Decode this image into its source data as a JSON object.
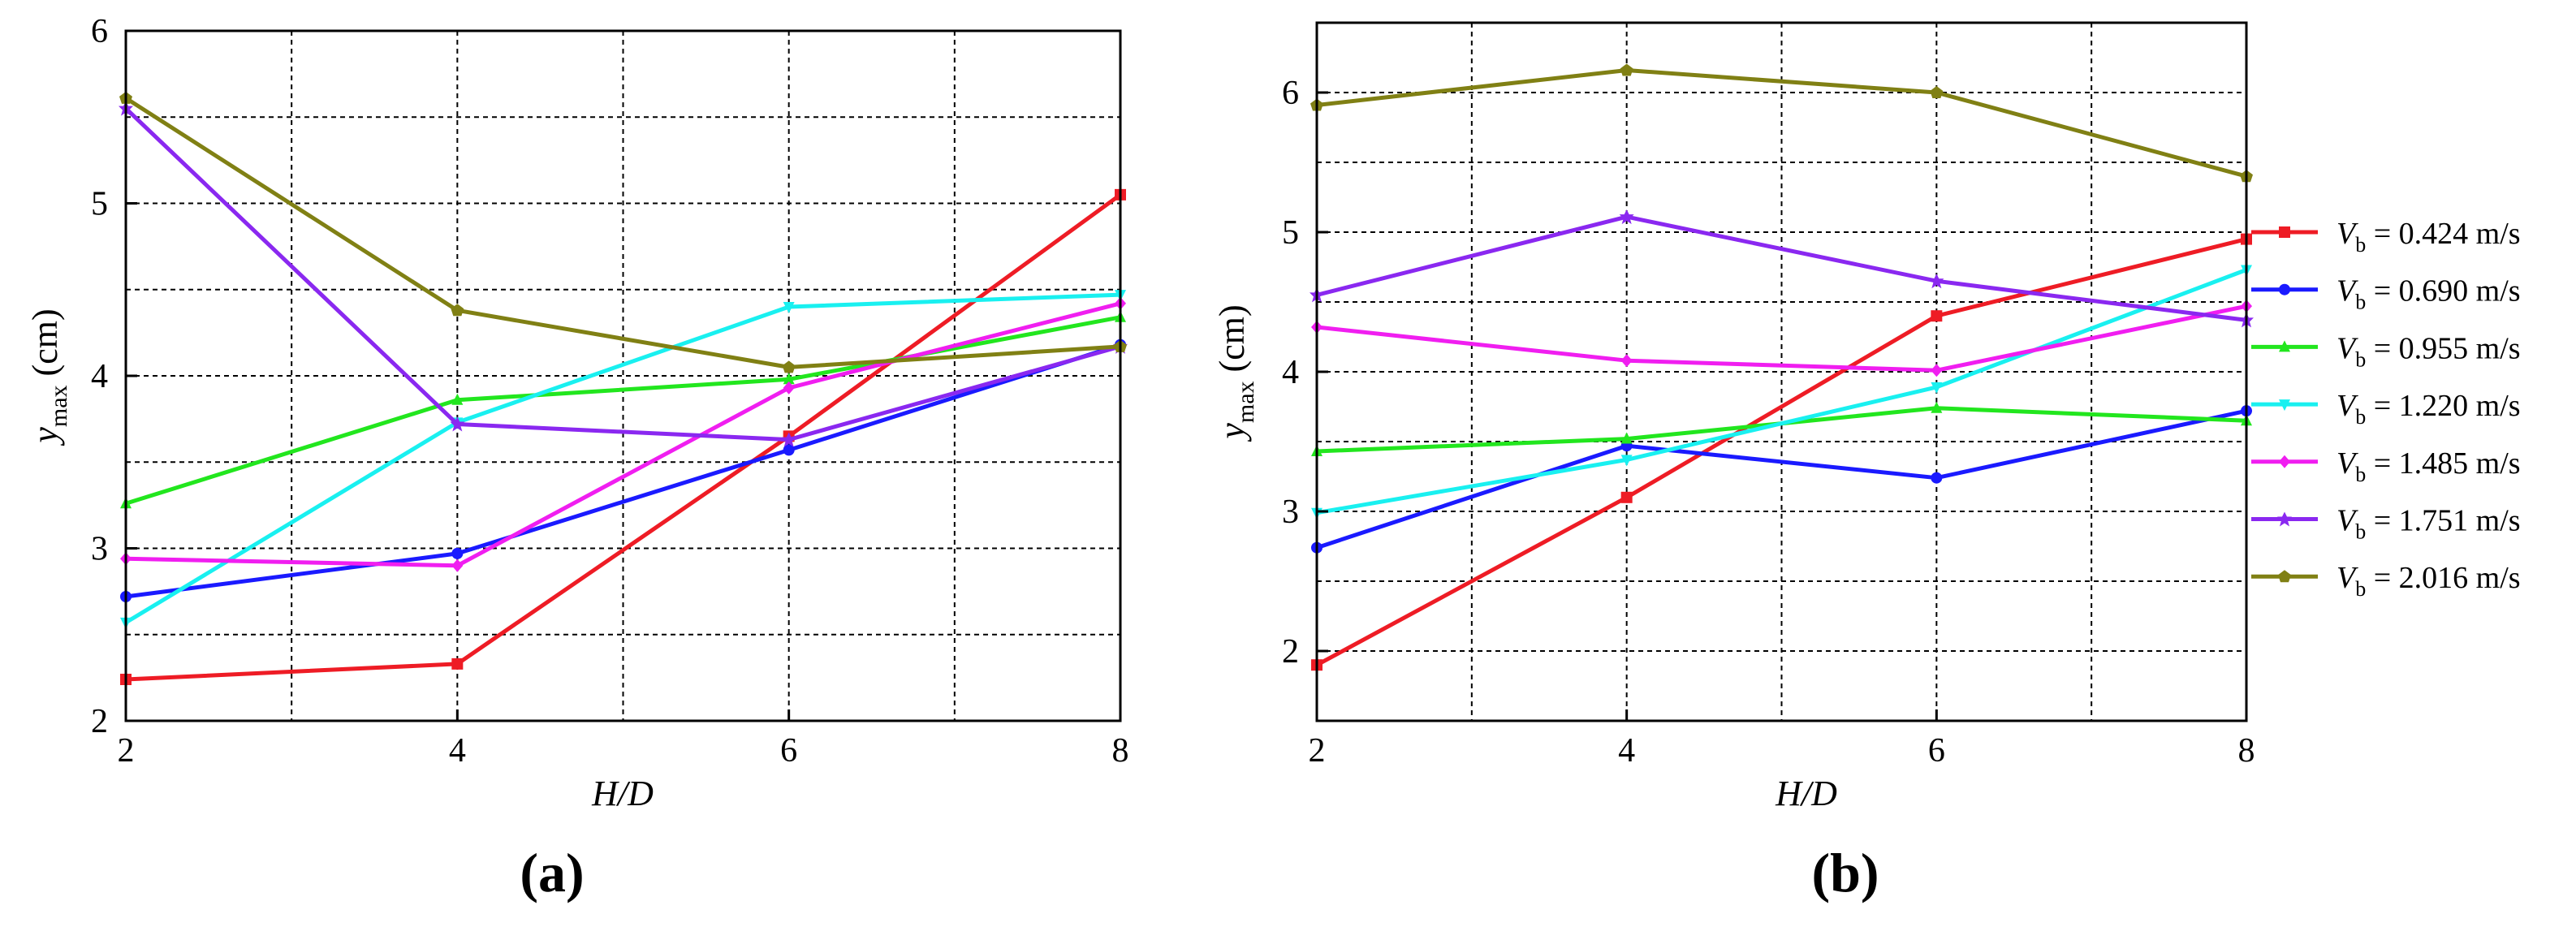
{
  "figure": {
    "legend_prefix": "V",
    "legend_subscript": "b",
    "legend_eq": " = ",
    "ylabel_main": "y",
    "ylabel_sub": "max",
    "ylabel_unit": " (cm)"
  },
  "chart_data": [
    {
      "type": "line",
      "panel_label": "(a)",
      "title": "",
      "xlabel": "H/D",
      "ylabel": "y_max (cm)",
      "xlim": [
        2,
        8
      ],
      "ylim": [
        2,
        6
      ],
      "xticks": [
        2,
        4,
        6,
        8
      ],
      "yticks": [
        2,
        3,
        4,
        5,
        6
      ],
      "grid": true,
      "x": [
        2,
        4,
        6,
        8
      ],
      "series": [
        {
          "name": "0.424 m/s",
          "color": "#ee1c25",
          "marker": "square",
          "values": [
            2.24,
            2.33,
            3.65,
            5.05
          ]
        },
        {
          "name": "0.690 m/s",
          "color": "#1a1aff",
          "marker": "circle",
          "values": [
            2.72,
            2.97,
            3.57,
            4.18
          ]
        },
        {
          "name": "0.955 m/s",
          "color": "#22e61e",
          "marker": "triangle",
          "values": [
            3.26,
            3.86,
            3.98,
            4.34
          ]
        },
        {
          "name": "1.220 m/s",
          "color": "#19f0f0",
          "marker": "triangle-down",
          "values": [
            2.57,
            3.73,
            4.4,
            4.47
          ]
        },
        {
          "name": "1.485 m/s",
          "color": "#f01ef0",
          "marker": "diamond",
          "values": [
            2.94,
            2.9,
            3.93,
            4.42
          ]
        },
        {
          "name": "1.751 m/s",
          "color": "#8a28f0",
          "marker": "star",
          "values": [
            5.55,
            3.72,
            3.63,
            4.17
          ]
        },
        {
          "name": "2.016 m/s",
          "color": "#808014",
          "marker": "pentagon",
          "values": [
            5.61,
            4.38,
            4.05,
            4.17
          ]
        }
      ]
    },
    {
      "type": "line",
      "panel_label": "(b)",
      "title": "",
      "xlabel": "H/D",
      "ylabel": "y_max (cm)",
      "xlim": [
        2,
        8
      ],
      "ylim": [
        1.5,
        6.5
      ],
      "xticks": [
        2,
        4,
        6,
        8
      ],
      "yticks": [
        2,
        3,
        4,
        5,
        6
      ],
      "grid": true,
      "legend_position": "right",
      "x": [
        2,
        4,
        6,
        8
      ],
      "series": [
        {
          "name": "0.424 m/s",
          "color": "#ee1c25",
          "marker": "square",
          "values": [
            1.9,
            3.1,
            4.4,
            4.95
          ]
        },
        {
          "name": "0.690 m/s",
          "color": "#1a1aff",
          "marker": "circle",
          "values": [
            2.74,
            3.47,
            3.24,
            3.72
          ]
        },
        {
          "name": "0.955 m/s",
          "color": "#22e61e",
          "marker": "triangle",
          "values": [
            3.43,
            3.52,
            3.74,
            3.65
          ]
        },
        {
          "name": "1.220 m/s",
          "color": "#19f0f0",
          "marker": "triangle-down",
          "values": [
            2.99,
            3.37,
            3.89,
            4.73
          ]
        },
        {
          "name": "1.485 m/s",
          "color": "#f01ef0",
          "marker": "diamond",
          "values": [
            4.32,
            4.08,
            4.01,
            4.47
          ]
        },
        {
          "name": "1.751 m/s",
          "color": "#8a28f0",
          "marker": "star",
          "values": [
            4.55,
            5.11,
            4.65,
            4.37
          ]
        },
        {
          "name": "2.016 m/s",
          "color": "#808014",
          "marker": "pentagon",
          "values": [
            5.91,
            6.16,
            6.0,
            5.4
          ]
        }
      ]
    }
  ]
}
